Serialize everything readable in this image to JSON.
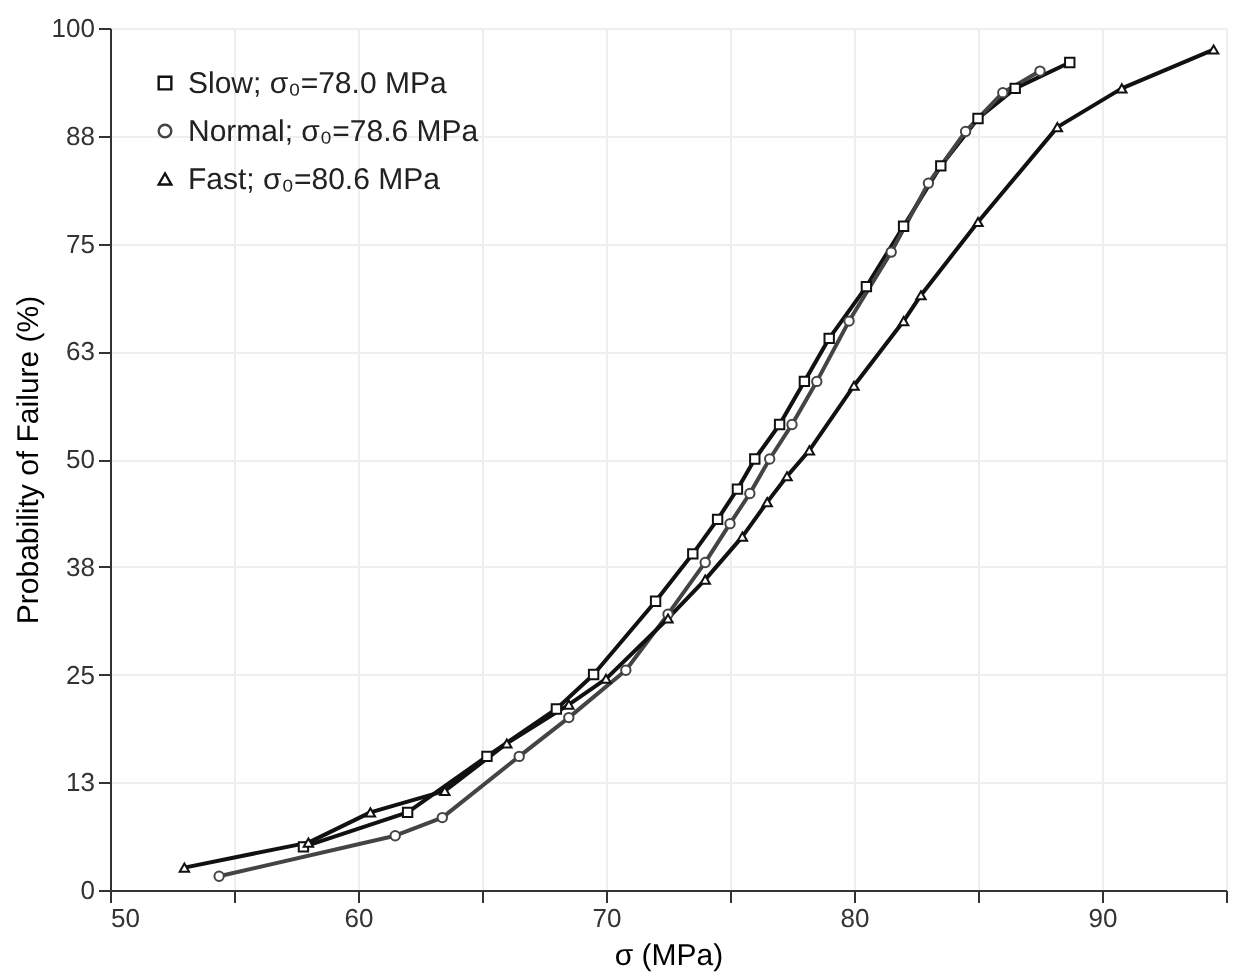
{
  "chart_data": {
    "type": "line",
    "xlabel": "σ (MPa)",
    "ylabel": "Probability of Failure (%)",
    "xlim": [
      50,
      95
    ],
    "ylim": [
      0,
      100
    ],
    "xticks": [
      50,
      {
        "value": 55,
        "label": null
      },
      60,
      {
        "value": 65,
        "label": null
      },
      70,
      {
        "value": 75,
        "label": null
      },
      80,
      {
        "value": 85,
        "label": null
      },
      90,
      {
        "value": 95,
        "label": null
      }
    ],
    "yticks": [
      0,
      {
        "value": 12.5,
        "label": "13"
      },
      25,
      {
        "value": 37.5,
        "label": "38"
      },
      50,
      {
        "value": 62.5,
        "label": "63"
      },
      75,
      {
        "value": 87.5,
        "label": "88"
      },
      100
    ],
    "grid": true,
    "legend": "top left",
    "line_style": "solid",
    "series": [
      {
        "name": "Slow; σ₀=78.0 MPa",
        "color": "#111111",
        "marker": "square",
        "x": [
          57.8,
          62,
          65.2,
          68,
          69.5,
          72,
          73.5,
          74.5,
          75.3,
          76,
          77,
          78,
          79,
          80.5,
          82,
          83.5,
          85,
          86.5,
          88.7
        ],
        "values": [
          5,
          9,
          15.5,
          21,
          25,
          33.5,
          39,
          43,
          46.5,
          50,
          54,
          59,
          64,
          70,
          77,
          84,
          89.5,
          93,
          96
        ]
      },
      {
        "name": "Normal; σ₀=78.6 MPa",
        "color": "#444444",
        "marker": "circle",
        "x": [
          54.4,
          61.5,
          63.4,
          66.5,
          68.5,
          70.8,
          72.5,
          74,
          75,
          75.8,
          76.6,
          77.5,
          78.5,
          79.8,
          81.5,
          83,
          84.5,
          86,
          87.5
        ],
        "values": [
          1.6,
          6.3,
          8.4,
          15.5,
          20,
          25.5,
          32,
          38,
          42.5,
          46,
          50,
          54,
          59,
          66,
          74,
          82,
          88,
          92.5,
          95
        ]
      },
      {
        "name": "Fast; σ₀=80.6 MPa",
        "color": "#111111",
        "marker": "triangle",
        "x": [
          53,
          58,
          60.5,
          63.5,
          66,
          68.5,
          70,
          72.5,
          74,
          75.5,
          76.5,
          77.3,
          78.2,
          80,
          82,
          82.7,
          85,
          88.2,
          90.8,
          94.5
        ],
        "values": [
          2.6,
          5.5,
          9,
          11.5,
          17,
          21.5,
          24.5,
          31.5,
          36,
          41,
          45,
          48,
          51,
          58.5,
          66,
          69,
          77.5,
          88.5,
          93,
          97.5
        ]
      }
    ]
  }
}
